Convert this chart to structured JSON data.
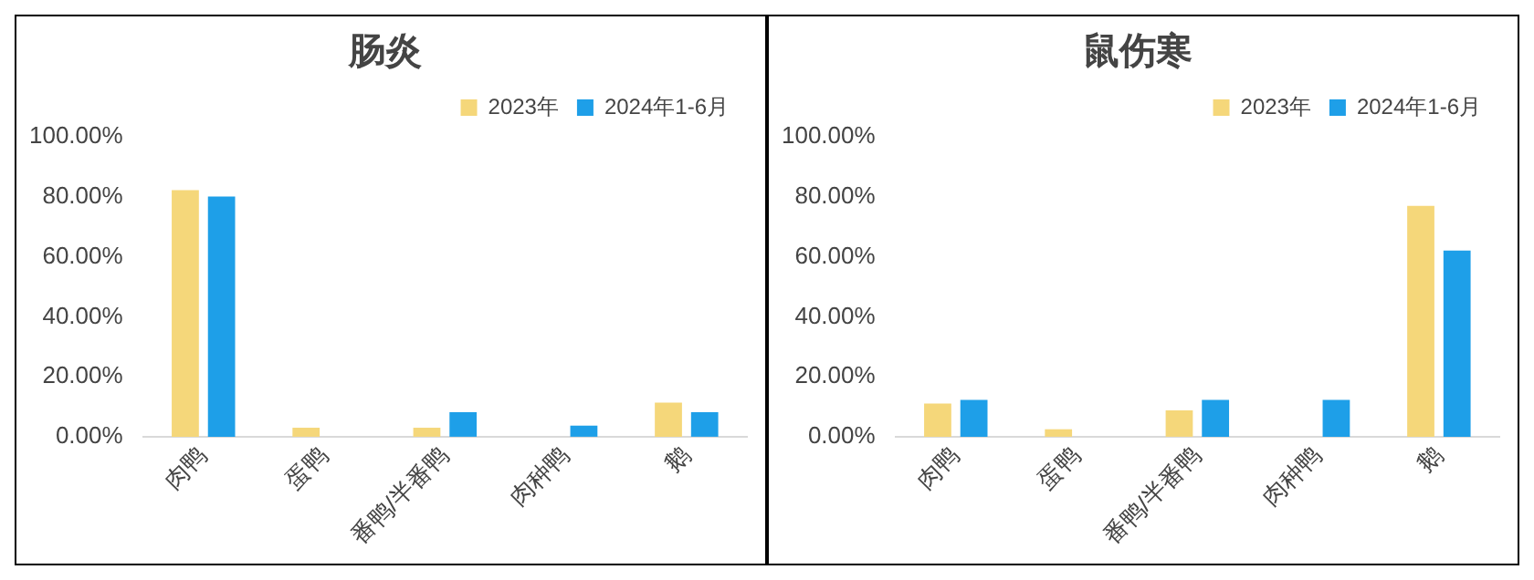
{
  "chart_data": [
    {
      "type": "bar",
      "title": "肠炎",
      "categories": [
        "肉鸭",
        "蛋鸭",
        "番鸭/半番鸭",
        "肉种鸭",
        "鹅"
      ],
      "series": [
        {
          "name": "2023年",
          "color": "#f5d77a",
          "values": [
            82.2,
            3.0,
            3.0,
            0,
            11.4
          ]
        },
        {
          "name": "2024年1-6月",
          "color": "#1e9fe8",
          "values": [
            80.1,
            0,
            8.2,
            3.7,
            8.2
          ]
        }
      ],
      "ylim": [
        0,
        100
      ],
      "yticks": [
        {
          "value": 0,
          "label": "0.00%"
        },
        {
          "value": 20,
          "label": "20.00%"
        },
        {
          "value": 40,
          "label": "40.00%"
        },
        {
          "value": 60,
          "label": "60.00%"
        },
        {
          "value": 80,
          "label": "80.00%"
        },
        {
          "value": 100,
          "label": "100.00%"
        }
      ],
      "grid": false,
      "legend": "top right"
    },
    {
      "type": "bar",
      "title": "鼠伤寒",
      "categories": [
        "肉鸭",
        "蛋鸭",
        "番鸭/半番鸭",
        "肉种鸭",
        "鹅"
      ],
      "series": [
        {
          "name": "2023年",
          "color": "#f5d77a",
          "values": [
            11.1,
            2.5,
            8.8,
            0,
            77.0
          ]
        },
        {
          "name": "2024年1-6月",
          "color": "#1e9fe8",
          "values": [
            12.3,
            0,
            12.3,
            12.3,
            62.1
          ]
        }
      ],
      "ylim": [
        0,
        100
      ],
      "yticks": [
        {
          "value": 0,
          "label": "0.00%"
        },
        {
          "value": 20,
          "label": "20.00%"
        },
        {
          "value": 40,
          "label": "40.00%"
        },
        {
          "value": 60,
          "label": "60.00%"
        },
        {
          "value": 80,
          "label": "80.00%"
        },
        {
          "value": 100,
          "label": "100.00%"
        }
      ],
      "grid": false,
      "legend": "top right"
    }
  ]
}
